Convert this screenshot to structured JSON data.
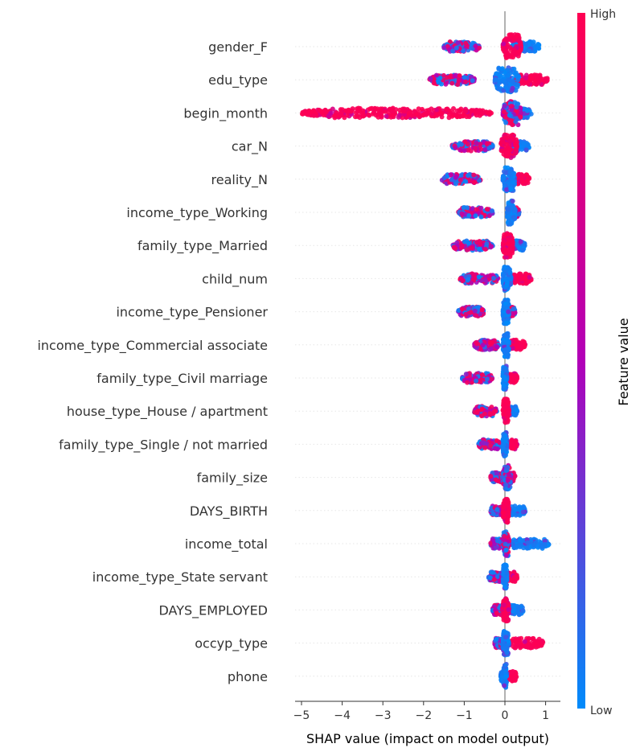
{
  "chart_data": {
    "type": "scatter",
    "subtype": "shap-beeswarm",
    "xlabel": "SHAP value (impact on model output)",
    "xlim": [
      -5.25,
      1.35
    ],
    "xticks": [
      -5,
      -4,
      -3,
      -2,
      -1,
      0,
      1
    ],
    "xtick_labels": [
      "−5",
      "−4",
      "−3",
      "−2",
      "−1",
      "0",
      "1"
    ],
    "grid": false,
    "colorbar": {
      "label": "Feature value",
      "high_label": "High",
      "low_label": "Low",
      "low_color": "#008bfb",
      "mid_color": "#b200b8",
      "high_color": "#ff0052"
    },
    "features": [
      {
        "name": "gender_F",
        "neg": [
          -1.5,
          -0.6
        ],
        "negColor": "mixed",
        "pos": [
          0.15,
          0.85
        ],
        "posColor": "blue",
        "core": [
          -0.05,
          0.4
        ],
        "coreColor": "red"
      },
      {
        "name": "edu_type",
        "neg": [
          -1.85,
          -0.75
        ],
        "negColor": "mixed",
        "pos": [
          0.25,
          1.05
        ],
        "posColor": "red",
        "core": [
          -0.25,
          0.35
        ],
        "coreColor": "blue"
      },
      {
        "name": "begin_month",
        "neg": [
          -5.0,
          -0.3
        ],
        "negColor": "red",
        "pos": [
          0.2,
          0.65
        ],
        "posColor": "blue",
        "core": [
          -0.05,
          0.4
        ],
        "coreColor": "mixed"
      },
      {
        "name": "car_N",
        "neg": [
          -1.3,
          -0.3
        ],
        "negColor": "mixed",
        "pos": [
          0.2,
          0.6
        ],
        "posColor": "blue",
        "core": [
          -0.1,
          0.3
        ],
        "coreColor": "red"
      },
      {
        "name": "reality_N",
        "neg": [
          -1.55,
          -0.6
        ],
        "negColor": "mixed",
        "pos": [
          0.25,
          0.6
        ],
        "posColor": "red",
        "core": [
          -0.05,
          0.25
        ],
        "coreColor": "blue"
      },
      {
        "name": "income_type_Working",
        "neg": [
          -1.15,
          -0.3
        ],
        "negColor": "mixed",
        "pos": [
          0.1,
          0.35
        ],
        "posColor": "mixed",
        "core": [
          0.05,
          0.25
        ],
        "coreColor": "blue"
      },
      {
        "name": "family_type_Married",
        "neg": [
          -1.3,
          -0.3
        ],
        "negColor": "mixed",
        "pos": [
          0.2,
          0.5
        ],
        "posColor": "blue",
        "core": [
          -0.05,
          0.2
        ],
        "coreColor": "red"
      },
      {
        "name": "child_num",
        "neg": [
          -1.1,
          -0.15
        ],
        "negColor": "mixed",
        "pos": [
          0.15,
          0.65
        ],
        "posColor": "red",
        "core": [
          -0.05,
          0.15
        ],
        "coreColor": "blue"
      },
      {
        "name": "income_type_Pensioner",
        "neg": [
          -1.15,
          -0.5
        ],
        "negColor": "mixed",
        "pos": [
          0.05,
          0.25
        ],
        "posColor": "mixed",
        "core": [
          -0.05,
          0.1
        ],
        "coreColor": "blue"
      },
      {
        "name": "income_type_Commercial associate",
        "neg": [
          -0.75,
          -0.15
        ],
        "negColor": "mixed",
        "pos": [
          0.1,
          0.5
        ],
        "posColor": "red",
        "core": [
          -0.05,
          0.1
        ],
        "coreColor": "blue"
      },
      {
        "name": "family_type_Civil marriage",
        "neg": [
          -1.05,
          -0.3
        ],
        "negColor": "mixed",
        "pos": [
          0.05,
          0.3
        ],
        "posColor": "red",
        "core": [
          -0.05,
          0.05
        ],
        "coreColor": "blue"
      },
      {
        "name": "house_type_House / apartment",
        "neg": [
          -0.75,
          -0.2
        ],
        "negColor": "mixed",
        "pos": [
          0.05,
          0.3
        ],
        "posColor": "blue",
        "core": [
          -0.05,
          0.1
        ],
        "coreColor": "red"
      },
      {
        "name": "family_type_Single / not married",
        "neg": [
          -0.65,
          -0.1
        ],
        "negColor": "mixed",
        "pos": [
          0.05,
          0.3
        ],
        "posColor": "red",
        "core": [
          -0.05,
          0.05
        ],
        "coreColor": "blue"
      },
      {
        "name": "family_size",
        "neg": [
          -0.35,
          -0.05
        ],
        "negColor": "mixed",
        "pos": [
          0.05,
          0.25
        ],
        "posColor": "mixed",
        "core": [
          -0.05,
          0.15
        ],
        "coreColor": "mixed"
      },
      {
        "name": "DAYS_BIRTH",
        "neg": [
          -0.35,
          -0.05
        ],
        "negColor": "mixed",
        "pos": [
          0.1,
          0.5
        ],
        "posColor": "blue",
        "core": [
          -0.05,
          0.1
        ],
        "coreColor": "red"
      },
      {
        "name": "income_total",
        "neg": [
          -0.35,
          -0.05
        ],
        "negColor": "mixed",
        "pos": [
          0.1,
          1.1
        ],
        "posColor": "blue",
        "core": [
          -0.05,
          0.1
        ],
        "coreColor": "mixed"
      },
      {
        "name": "income_type_State servant",
        "neg": [
          -0.4,
          -0.05
        ],
        "negColor": "mixed",
        "pos": [
          0.05,
          0.3
        ],
        "posColor": "red",
        "core": [
          -0.05,
          0.05
        ],
        "coreColor": "blue"
      },
      {
        "name": "DAYS_EMPLOYED",
        "neg": [
          -0.3,
          -0.05
        ],
        "negColor": "mixed",
        "pos": [
          0.1,
          0.45
        ],
        "posColor": "blue",
        "core": [
          -0.05,
          0.1
        ],
        "coreColor": "red"
      },
      {
        "name": "occyp_type",
        "neg": [
          -0.25,
          -0.05
        ],
        "negColor": "mixed",
        "pos": [
          0.1,
          0.95
        ],
        "posColor": "red",
        "core": [
          -0.05,
          0.1
        ],
        "coreColor": "blue"
      },
      {
        "name": "phone",
        "neg": [
          -0.1,
          -0.02
        ],
        "negColor": "blue",
        "pos": [
          0.05,
          0.3
        ],
        "posColor": "red",
        "core": [
          -0.05,
          0.05
        ],
        "coreColor": "blue"
      }
    ]
  }
}
